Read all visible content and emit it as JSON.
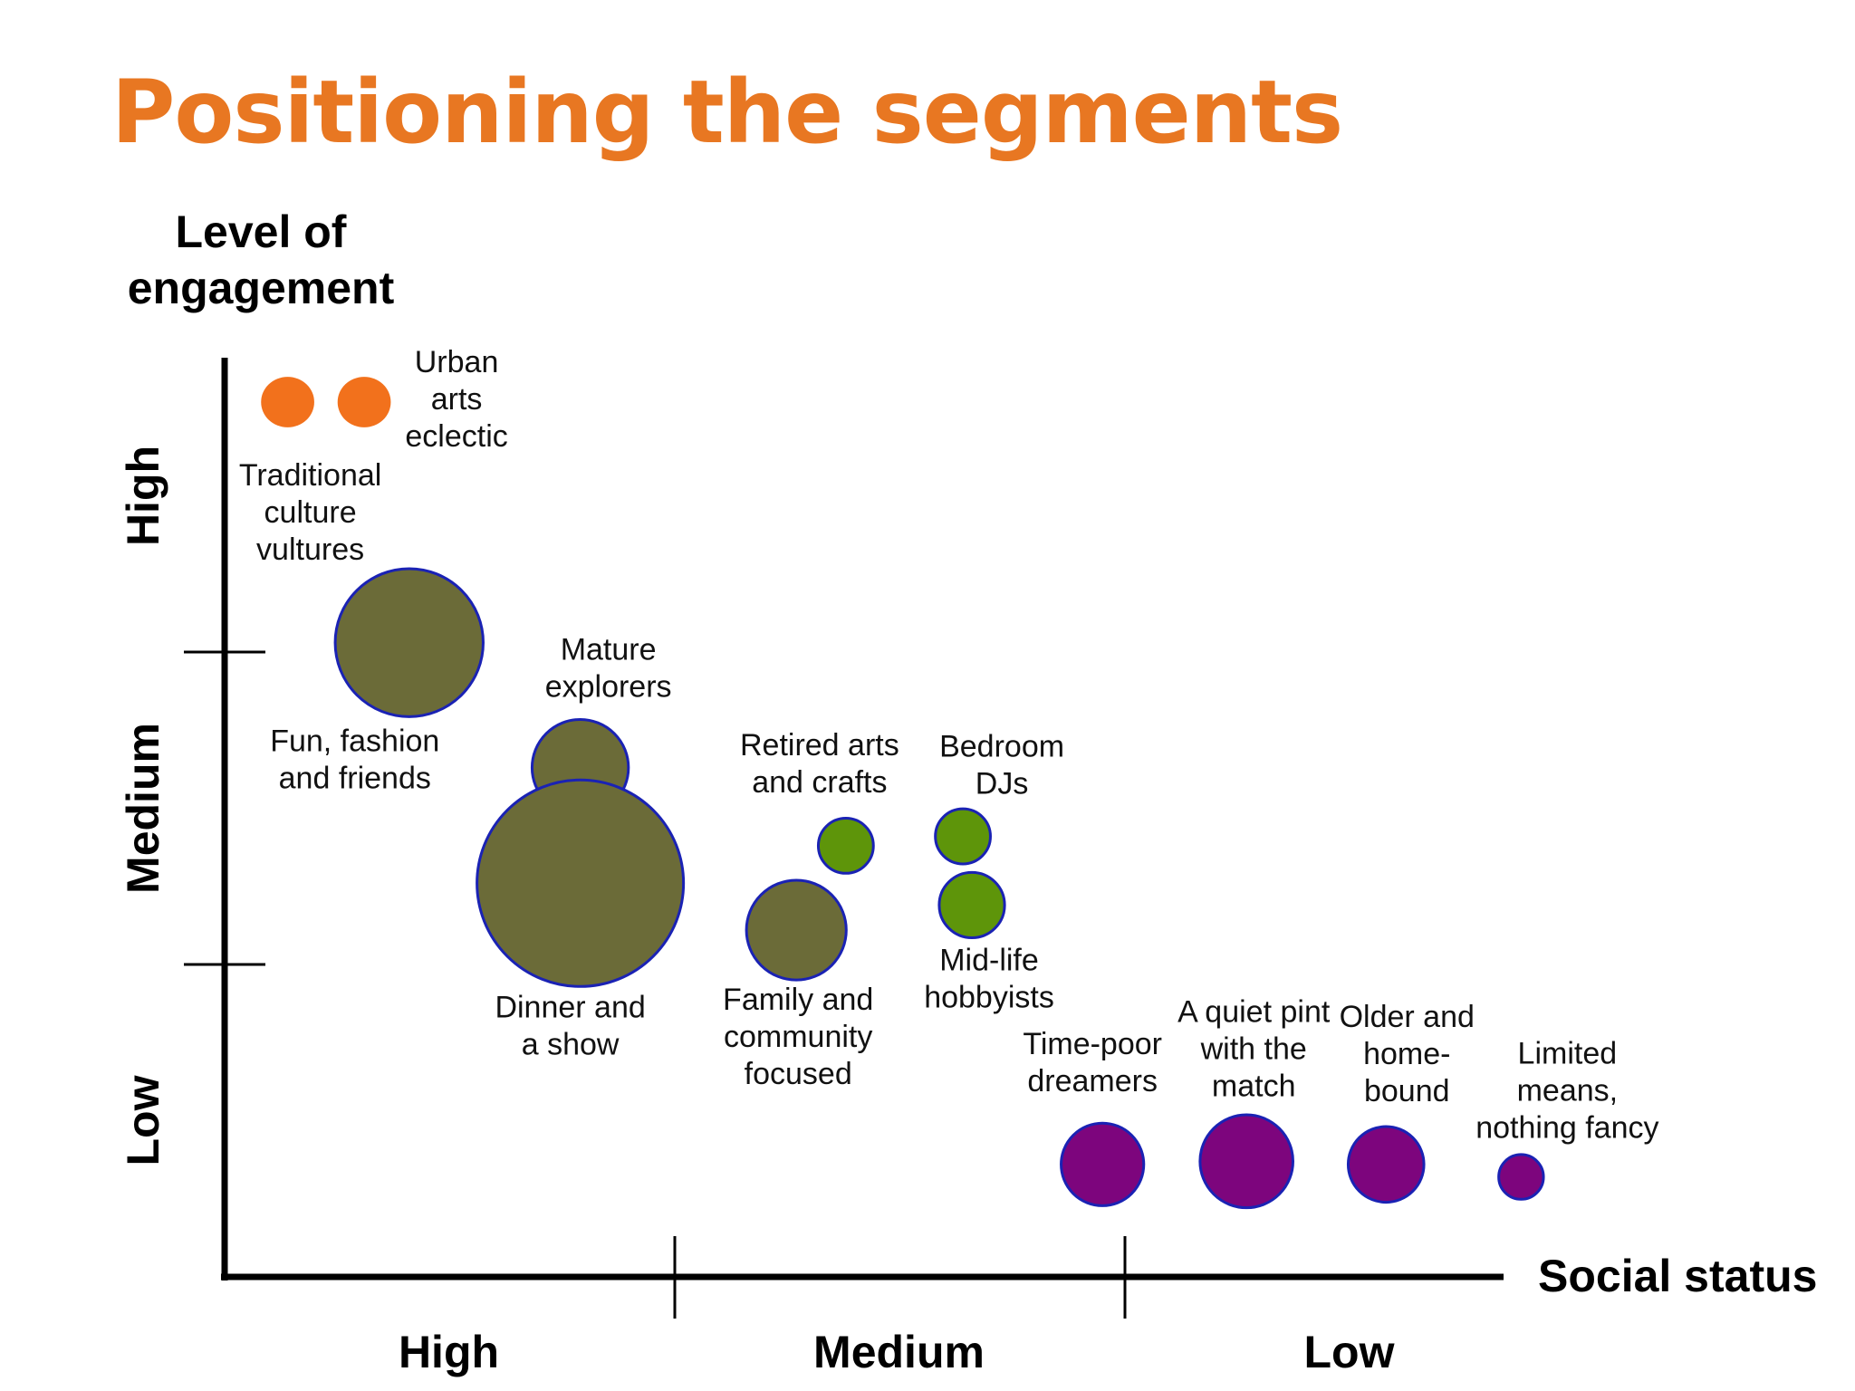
{
  "slide": {
    "title": "Positioning the segments"
  },
  "chart_data": {
    "type": "scatter",
    "subtype": "bubble",
    "title": "Positioning the segments",
    "xlabel": "Social status",
    "ylabel": "Level of engagement",
    "ylabel_lines": [
      "Level of",
      "engagement"
    ],
    "x_direction": "High to Low (left to right)",
    "x_categories": [
      "High",
      "Medium",
      "Low"
    ],
    "y_categories": [
      "Low",
      "Medium",
      "High"
    ],
    "xlim": [
      0,
      3
    ],
    "ylim": [
      0,
      3
    ],
    "grid": false,
    "colors": {
      "high": "#f2711c",
      "medium_olive": "#6b6b38",
      "medium_green": "#5e950a",
      "low": "#7d057d",
      "outline": "#1a22b4"
    },
    "segments": [
      {
        "name": "Traditional culture vultures",
        "label_lines": [
          "Traditional",
          "culture",
          "vultures"
        ],
        "x": 0.14,
        "y": 2.8,
        "size": 1.5,
        "group": "high"
      },
      {
        "name": "Urban arts eclectic",
        "label_lines": [
          "Urban",
          "arts",
          "eclectic"
        ],
        "x": 0.31,
        "y": 2.8,
        "size": 1.5,
        "group": "high"
      },
      {
        "name": "Fun, fashion and friends",
        "label_lines": [
          "Fun, fashion",
          "and friends"
        ],
        "x": 0.41,
        "y": 2.03,
        "size": 4.3,
        "group": "medium_olive"
      },
      {
        "name": "Mature explorers",
        "label_lines": [
          "Mature",
          "explorers"
        ],
        "x": 0.79,
        "y": 1.63,
        "size": 2.8,
        "group": "medium_olive"
      },
      {
        "name": "Dinner and a show",
        "label_lines": [
          "Dinner and",
          "a show"
        ],
        "x": 0.79,
        "y": 1.26,
        "size": 6.0,
        "group": "medium_olive"
      },
      {
        "name": "Family and community focused",
        "label_lines": [
          "Family and",
          "community",
          "focused"
        ],
        "x": 1.27,
        "y": 1.11,
        "size": 2.9,
        "group": "medium_olive"
      },
      {
        "name": "Retired arts and crafts",
        "label_lines": [
          "Retired arts",
          "and crafts"
        ],
        "x": 1.38,
        "y": 1.38,
        "size": 1.6,
        "group": "medium_green"
      },
      {
        "name": "Bedroom DJs",
        "label_lines": [
          "Bedroom",
          "DJs"
        ],
        "x": 1.64,
        "y": 1.41,
        "size": 1.6,
        "group": "medium_green"
      },
      {
        "name": "Mid-life hobbyists",
        "label_lines": [
          "Mid-life",
          "hobbyists"
        ],
        "x": 1.66,
        "y": 1.19,
        "size": 1.9,
        "group": "medium_green"
      },
      {
        "name": "Time-poor dreamers",
        "label_lines": [
          "Time-poor",
          "dreamers"
        ],
        "x": 1.95,
        "y": 0.36,
        "size": 2.4,
        "group": "low"
      },
      {
        "name": "A quiet pint with the match",
        "label_lines": [
          "A quiet pint",
          "with the",
          "match"
        ],
        "x": 2.27,
        "y": 0.37,
        "size": 2.7,
        "group": "low"
      },
      {
        "name": "Older and home-bound",
        "label_lines": [
          "Older and",
          "home-",
          "bound"
        ],
        "x": 2.58,
        "y": 0.36,
        "size": 2.2,
        "group": "low"
      },
      {
        "name": "Limited means, nothing fancy",
        "label_lines": [
          "Limited",
          "means,",
          "nothing fancy"
        ],
        "x": 2.88,
        "y": 0.32,
        "size": 1.3,
        "group": "low"
      }
    ]
  }
}
